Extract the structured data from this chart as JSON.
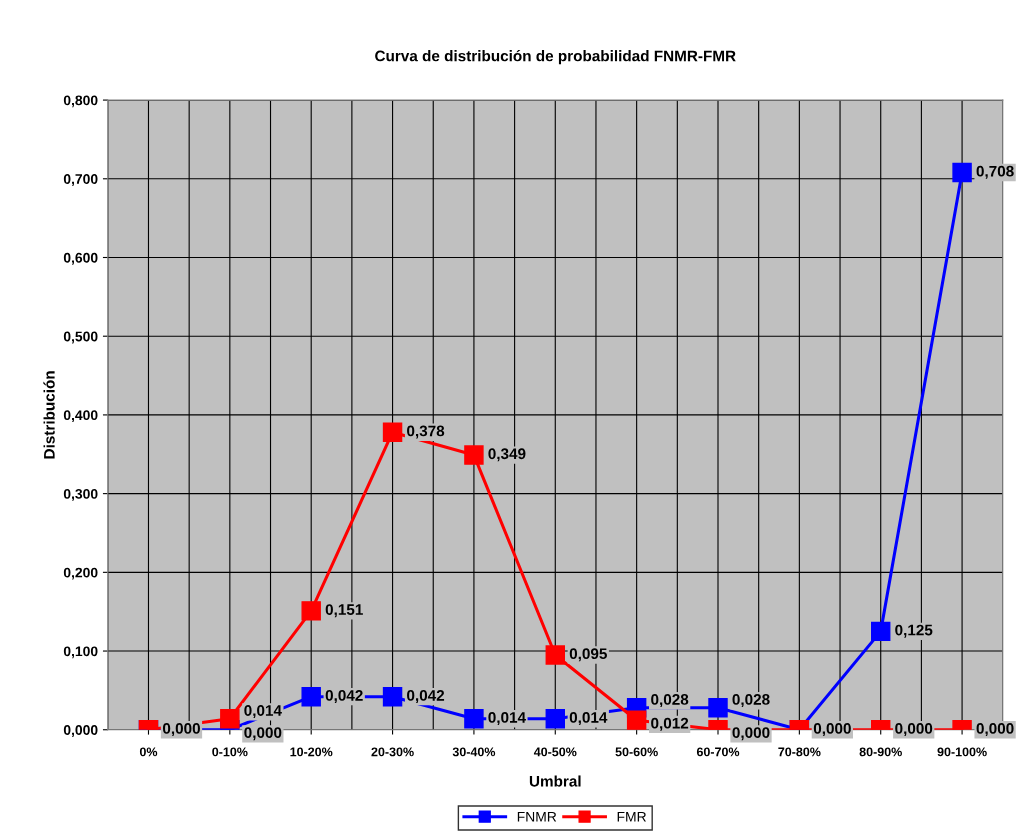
{
  "chart_data": {
    "type": "line",
    "title": "Curva de distribución de probabilidad FNMR-FMR",
    "xlabel": "Umbral",
    "ylabel": "Distribución",
    "categories": [
      "0%",
      "0-10%",
      "10-20%",
      "20-30%",
      "30-40%",
      "40-50%",
      "50-60%",
      "60-70%",
      "70-80%",
      "80-90%",
      "90-100%"
    ],
    "series": [
      {
        "name": "FNMR",
        "color": "#0000ff",
        "values": [
          0,
          0,
          0.042,
          0.042,
          0.014,
          0.014,
          0.028,
          0.028,
          0,
          0.125,
          0.708
        ],
        "value_labels": [
          null,
          "0,000",
          "0,042",
          "0,042",
          "0,014",
          "0,014",
          "0,028",
          "0,028",
          null,
          "0,125",
          "0,708"
        ]
      },
      {
        "name": "FMR",
        "color": "#ff0000",
        "values": [
          0,
          0.014,
          0.151,
          0.378,
          0.349,
          0.095,
          0.012,
          0,
          0,
          0,
          0
        ],
        "value_labels": [
          "0,000",
          "0,014",
          "0,151",
          "0,378",
          "0,349",
          "0,095",
          "0,012",
          "0,000",
          "0,000",
          "0,000",
          "0,000"
        ]
      }
    ],
    "ylim": [
      0,
      0.8
    ],
    "yticks": [
      {
        "value": 0,
        "label": "0,000"
      },
      {
        "value": 0.1,
        "label": "0,100"
      },
      {
        "value": 0.2,
        "label": "0,200"
      },
      {
        "value": 0.3,
        "label": "0,300"
      },
      {
        "value": 0.4,
        "label": "0,400"
      },
      {
        "value": 0.5,
        "label": "0,500"
      },
      {
        "value": 0.6,
        "label": "0,600"
      },
      {
        "value": 0.7,
        "label": "0,700"
      },
      {
        "value": 0.8,
        "label": "0,800"
      }
    ],
    "grid": true,
    "legend": "bottom",
    "marker": "square",
    "line_style": "solid"
  }
}
